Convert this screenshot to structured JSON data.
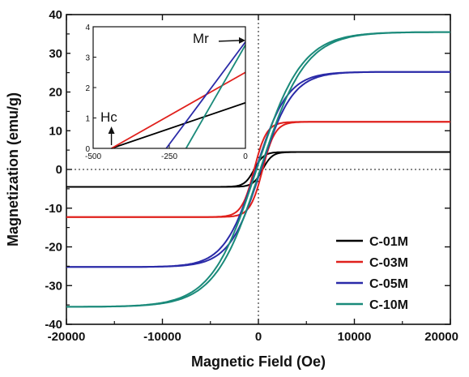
{
  "chart_data": [
    {
      "type": "line",
      "title": "",
      "xlabel": "Magnetic Field (Oe)",
      "ylabel": "Magnetization (emu/g)",
      "xlim": [
        -20000,
        20000
      ],
      "ylim": [
        -40,
        40
      ],
      "xticks": [
        -20000,
        -10000,
        0,
        10000,
        20000
      ],
      "xtick_labels": [
        "-20000",
        "-10000",
        "0",
        "10000",
        "20000"
      ],
      "yticks": [
        -40,
        -30,
        -20,
        -10,
        0,
        10,
        20,
        30,
        40
      ],
      "ytick_labels": [
        "-40",
        "-30",
        "-20",
        "-10",
        "0",
        "10",
        "20",
        "30",
        "40"
      ],
      "grid": false,
      "legend_position": "bottom-right",
      "reference_lines": {
        "x": 0,
        "y": 0,
        "style": "dotted"
      },
      "series": [
        {
          "name": "C-01M",
          "color": "#000000",
          "Ms": 4.5,
          "Hc": 440,
          "Mr": 1.5,
          "width_field": 1000,
          "branch_upper": {
            "x": [
              -20000,
              -10000,
              -5000,
              -2000,
              -1000,
              0,
              1000,
              2000,
              5000,
              10000,
              20000
            ],
            "y": [
              -4.5,
              -4.4,
              -4.2,
              -3.3,
              -2.2,
              1.5,
              3.0,
              3.8,
              4.3,
              4.45,
              4.5
            ]
          }
        },
        {
          "name": "C-03M",
          "color": "#e0201c",
          "Ms": 12.3,
          "Hc": 440,
          "Mr": 2.5,
          "width_field": 1300,
          "branch_upper": {
            "x": [
              -20000,
              -10000,
              -5000,
              -2000,
              -1000,
              0,
              1000,
              2000,
              5000,
              10000,
              20000
            ],
            "y": [
              -12.3,
              -12.0,
              -10.8,
              -7.2,
              -4.4,
              2.5,
              6.3,
              8.9,
              11.4,
              12.1,
              12.3
            ]
          }
        },
        {
          "name": "C-05M",
          "color": "#2a2aa8",
          "Ms": 25.2,
          "Hc": 260,
          "Mr": 3.5,
          "width_field": 3300,
          "branch_upper": {
            "x": [
              -20000,
              -10000,
              -5000,
              -2000,
              -1000,
              0,
              1000,
              2000,
              5000,
              10000,
              20000
            ],
            "y": [
              -25.2,
              -24.3,
              -19.2,
              -10.1,
              -5.2,
              3.5,
              9.7,
              14.2,
              21.6,
              24.6,
              25.2
            ]
          }
        },
        {
          "name": "C-10M",
          "color": "#1a8a7a",
          "Ms": 35.5,
          "Hc": 195,
          "Mr": 3.4,
          "width_field": 4700,
          "branch_upper": {
            "x": [
              -20000,
              -10000,
              -5000,
              -2000,
              -1000,
              0,
              1000,
              2000,
              5000,
              10000,
              20000
            ],
            "y": [
              -35.4,
              -31.5,
              -24.0,
              -12.5,
              -6.3,
              3.4,
              9.0,
              14.5,
              26.5,
              33.6,
              35.4
            ]
          }
        }
      ],
      "legend": [
        "C-01M",
        "C-03M",
        "C-05M",
        "C-10M"
      ]
    },
    {
      "type": "line",
      "title": "",
      "role": "inset",
      "xlabel": "",
      "ylabel": "",
      "xlim": [
        -500,
        0
      ],
      "ylim": [
        0,
        4
      ],
      "xticks": [
        -500,
        -250,
        0
      ],
      "xtick_labels": [
        "-500",
        "-250",
        "0"
      ],
      "yticks": [
        0,
        1,
        2,
        3,
        4
      ],
      "ytick_labels": [
        "0",
        "1",
        "2",
        "3",
        "4"
      ],
      "annotations": [
        "Hc",
        "Mr"
      ],
      "series": [
        {
          "name": "C-01M",
          "color": "#000000",
          "x": [
            -440,
            0
          ],
          "y": [
            0,
            1.5
          ]
        },
        {
          "name": "C-03M",
          "color": "#e0201c",
          "x": [
            -440,
            0
          ],
          "y": [
            0,
            2.5
          ]
        },
        {
          "name": "C-05M",
          "color": "#2a2aa8",
          "x": [
            -260,
            0
          ],
          "y": [
            0,
            3.5
          ]
        },
        {
          "name": "C-10M",
          "color": "#1a8a7a",
          "x": [
            -195,
            0
          ],
          "y": [
            0,
            3.4
          ]
        }
      ]
    }
  ]
}
